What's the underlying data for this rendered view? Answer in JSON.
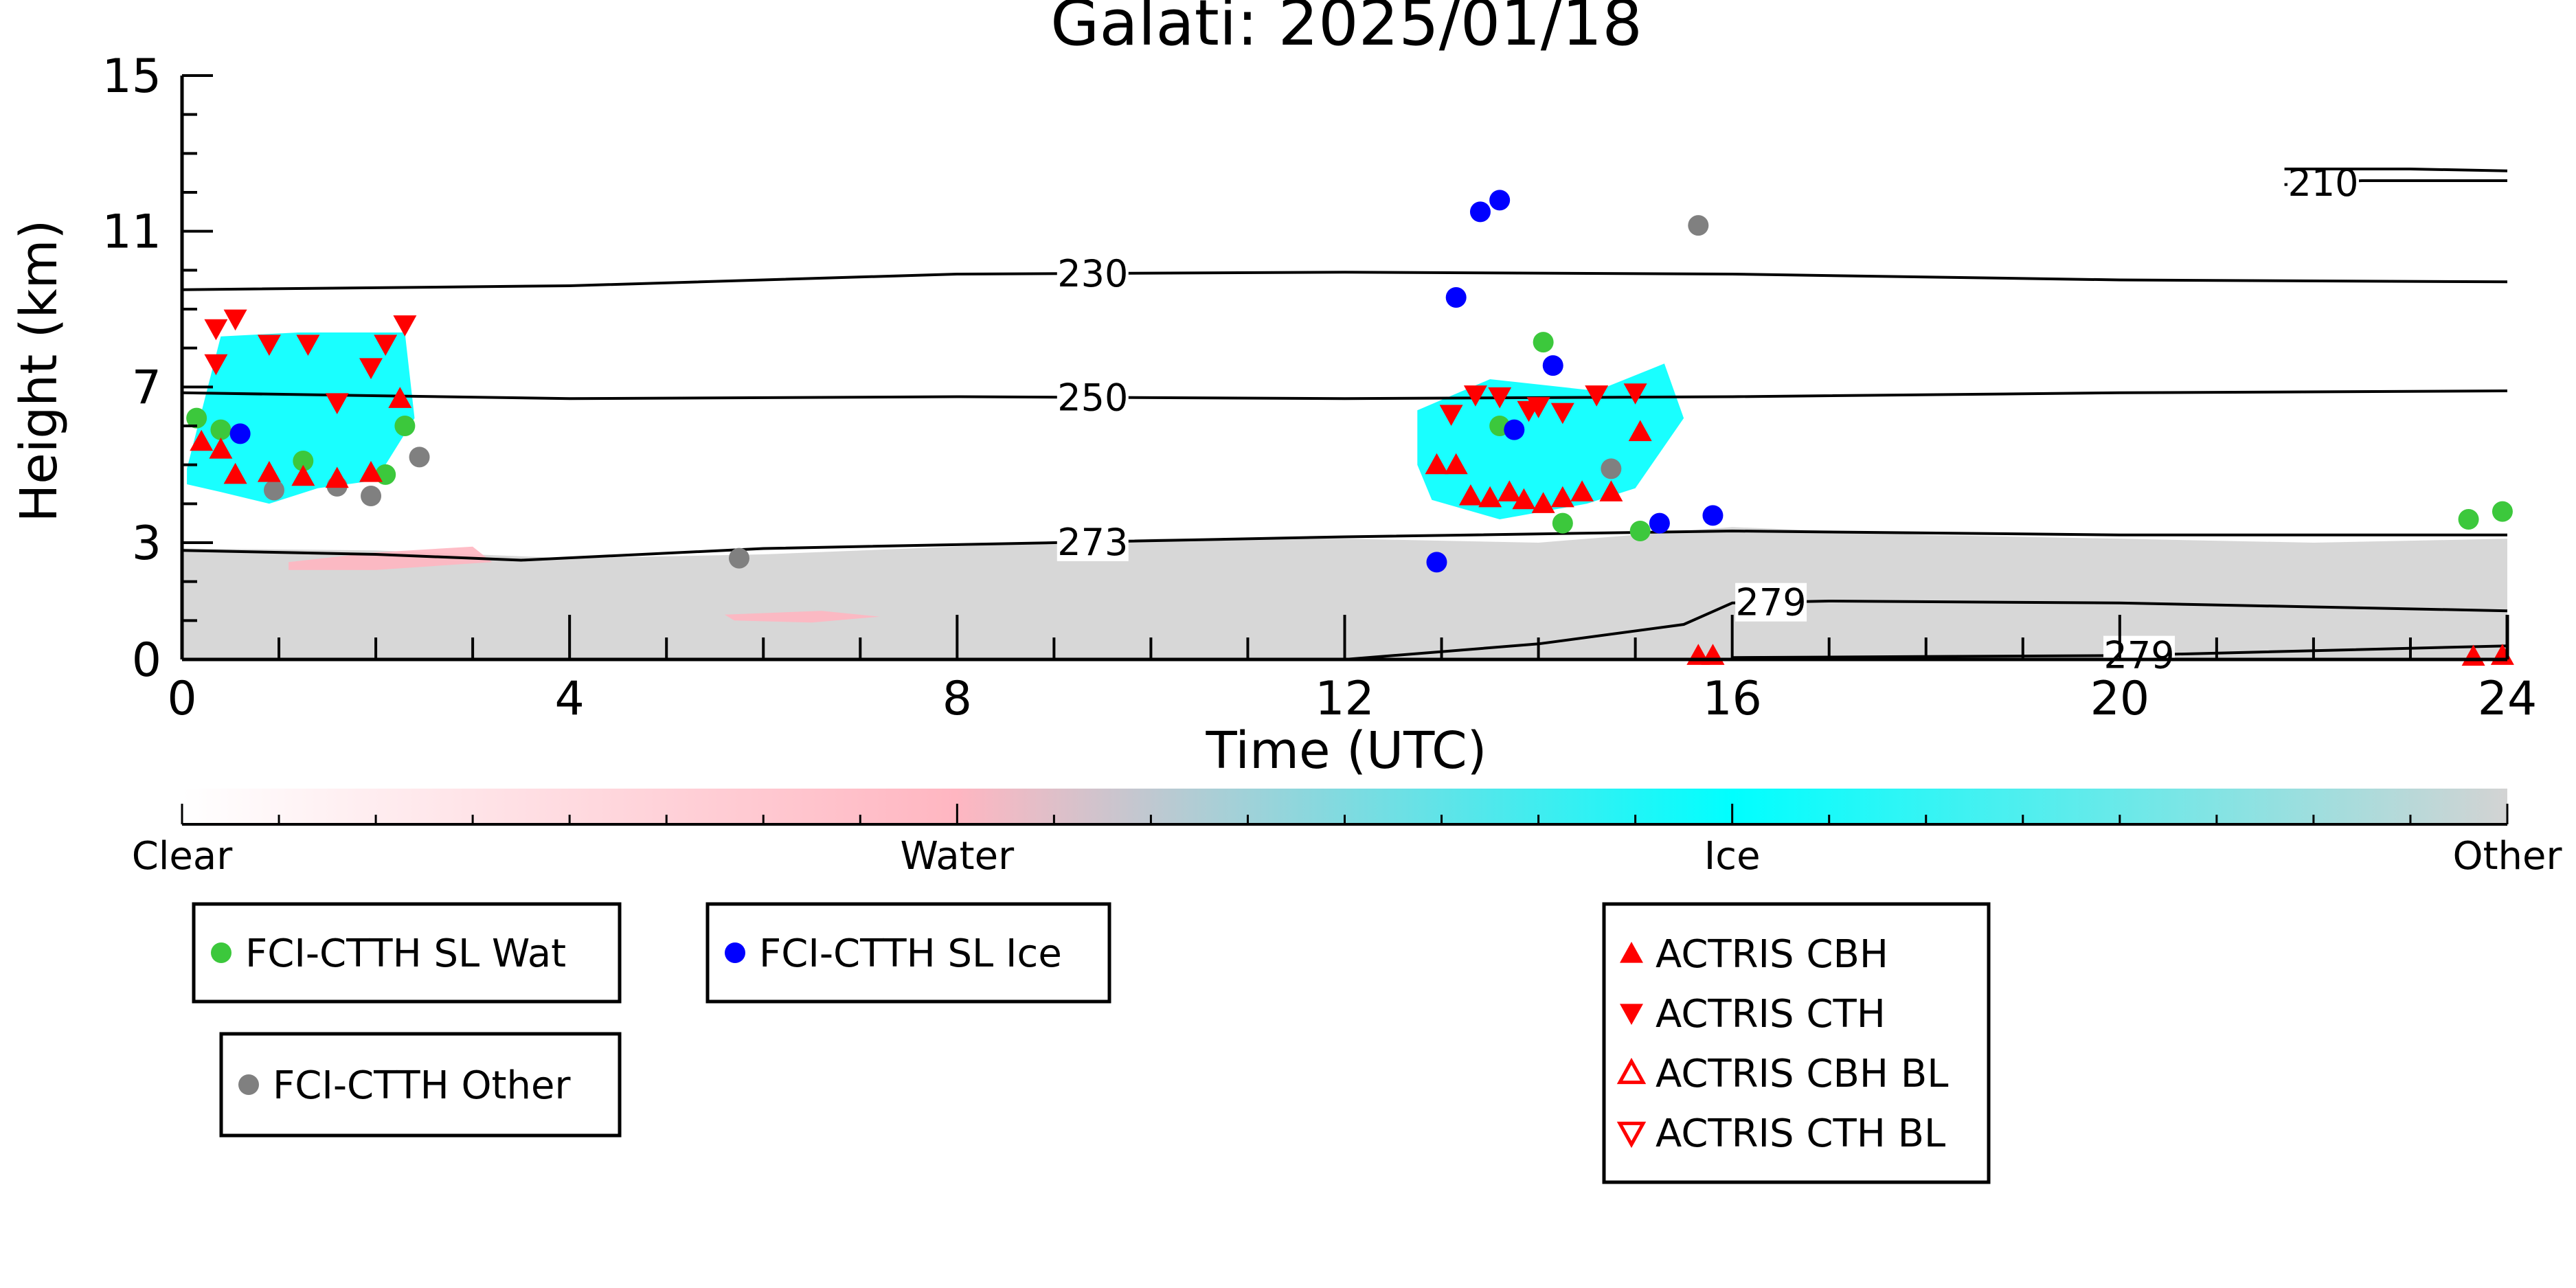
{
  "chart_data": {
    "type": "scatter",
    "title": "Galati: 2025/01/18",
    "xlabel": "Time (UTC)",
    "ylabel": "Height (km)",
    "xlim": [
      0,
      24
    ],
    "ylim": [
      0,
      15
    ],
    "xticks": [
      0,
      4,
      8,
      12,
      16,
      20,
      24
    ],
    "yticks": [
      0,
      3,
      7,
      11,
      15
    ],
    "grid": false,
    "colorbar": {
      "labels": [
        "Clear",
        "Water",
        "Ice",
        "Other"
      ],
      "colors": [
        "#ffffff",
        "#ffb6c1",
        "#00ffff",
        "#d3d3d3"
      ]
    },
    "cloud_regions": [
      {
        "class": "Other",
        "color": "#d3d3d3",
        "points": [
          [
            0,
            0
          ],
          [
            0,
            2.85
          ],
          [
            2,
            2.8
          ],
          [
            4,
            2.6
          ],
          [
            6,
            2.7
          ],
          [
            8,
            2.9
          ],
          [
            10,
            3.1
          ],
          [
            12,
            3.1
          ],
          [
            14,
            3.0
          ],
          [
            16,
            3.4
          ],
          [
            18,
            3.2
          ],
          [
            20,
            3.1
          ],
          [
            22,
            3.0
          ],
          [
            24,
            3.1
          ],
          [
            24,
            0
          ]
        ]
      },
      {
        "class": "Water",
        "color": "#ffb6c1",
        "points": [
          [
            1.1,
            2.5
          ],
          [
            2.0,
            2.75
          ],
          [
            3.0,
            2.9
          ],
          [
            3.2,
            2.5
          ],
          [
            2.0,
            2.3
          ],
          [
            1.1,
            2.3
          ]
        ]
      },
      {
        "class": "Water",
        "color": "#ffb6c1",
        "points": [
          [
            5.6,
            1.15
          ],
          [
            6.6,
            1.25
          ],
          [
            7.2,
            1.1
          ],
          [
            6.5,
            0.95
          ],
          [
            5.7,
            1.0
          ]
        ]
      },
      {
        "class": "Ice",
        "color": "#00ffff",
        "points": [
          [
            0.05,
            4.9
          ],
          [
            0.4,
            8.3
          ],
          [
            1.2,
            8.4
          ],
          [
            2.3,
            8.4
          ],
          [
            2.4,
            6.2
          ],
          [
            2.0,
            4.6
          ],
          [
            1.4,
            4.4
          ],
          [
            0.9,
            4.0
          ],
          [
            0.4,
            4.3
          ],
          [
            0.05,
            4.5
          ]
        ]
      },
      {
        "class": "Ice",
        "color": "#00ffff",
        "points": [
          [
            12.75,
            6.4
          ],
          [
            13.5,
            7.2
          ],
          [
            14.6,
            6.9
          ],
          [
            15.3,
            7.6
          ],
          [
            15.5,
            6.2
          ],
          [
            15.0,
            4.4
          ],
          [
            14.5,
            4.0
          ],
          [
            13.6,
            3.6
          ],
          [
            12.9,
            4.1
          ],
          [
            12.75,
            5.0
          ]
        ]
      }
    ],
    "isotherms": [
      {
        "label": "210",
        "label_x": 22.1,
        "points": [
          [
            21.7,
            12.2
          ],
          [
            22.5,
            12.3
          ],
          [
            24,
            12.3
          ]
        ]
      },
      {
        "label": "210",
        "label_x": null,
        "points": [
          [
            21.7,
            12.6
          ],
          [
            23,
            12.6
          ],
          [
            24,
            12.55
          ]
        ]
      },
      {
        "label": "230",
        "label_x": 9.4,
        "points": [
          [
            0,
            9.5
          ],
          [
            4,
            9.6
          ],
          [
            8,
            9.9
          ],
          [
            12,
            9.95
          ],
          [
            16,
            9.9
          ],
          [
            20,
            9.75
          ],
          [
            24,
            9.7
          ]
        ]
      },
      {
        "label": "250",
        "label_x": 9.4,
        "points": [
          [
            0,
            6.85
          ],
          [
            4,
            6.7
          ],
          [
            8,
            6.75
          ],
          [
            12,
            6.7
          ],
          [
            16,
            6.75
          ],
          [
            20,
            6.85
          ],
          [
            24,
            6.9
          ]
        ]
      },
      {
        "label": "273",
        "label_x": 9.4,
        "points": [
          [
            0,
            2.8
          ],
          [
            2,
            2.7
          ],
          [
            3.5,
            2.55
          ],
          [
            6,
            2.85
          ],
          [
            9,
            3.0
          ],
          [
            12,
            3.15
          ],
          [
            16,
            3.3
          ],
          [
            20,
            3.2
          ],
          [
            24,
            3.2
          ]
        ]
      },
      {
        "label": "279",
        "label_x": 16.4,
        "points": [
          [
            12,
            0.0
          ],
          [
            14,
            0.4
          ],
          [
            15.5,
            0.9
          ],
          [
            16,
            1.45
          ],
          [
            17,
            1.5
          ],
          [
            20,
            1.45
          ],
          [
            22,
            1.35
          ],
          [
            24,
            1.25
          ]
        ]
      },
      {
        "label": "279",
        "label_x": 20.2,
        "points": [
          [
            16,
            0.05
          ],
          [
            20,
            0.1
          ],
          [
            24,
            0.35
          ]
        ]
      }
    ],
    "series": [
      {
        "name": "FCI-CTTH SL Wat",
        "color": "#3cc83c",
        "marker": "circle",
        "points": [
          [
            0.15,
            6.2
          ],
          [
            0.4,
            5.9
          ],
          [
            1.25,
            5.1
          ],
          [
            2.1,
            4.75
          ],
          [
            2.3,
            6.0
          ],
          [
            14.05,
            8.15
          ],
          [
            13.6,
            6.0
          ],
          [
            14.25,
            3.5
          ],
          [
            15.05,
            3.3
          ],
          [
            23.6,
            3.6
          ],
          [
            23.95,
            3.8
          ]
        ]
      },
      {
        "name": "FCI-CTTH SL Ice",
        "color": "#0000ff",
        "marker": "circle",
        "points": [
          [
            0.6,
            5.8
          ],
          [
            13.4,
            11.5
          ],
          [
            13.6,
            11.8
          ],
          [
            13.15,
            9.3
          ],
          [
            14.15,
            7.55
          ],
          [
            13.75,
            5.9
          ],
          [
            12.95,
            2.5
          ],
          [
            15.25,
            3.5
          ],
          [
            15.8,
            3.7
          ]
        ]
      },
      {
        "name": "FCI-CTTH Other",
        "color": "#808080",
        "marker": "circle",
        "points": [
          [
            2.45,
            5.2
          ],
          [
            0.95,
            4.35
          ],
          [
            1.6,
            4.45
          ],
          [
            1.95,
            4.2
          ],
          [
            5.75,
            2.6
          ],
          [
            14.75,
            4.9
          ],
          [
            15.65,
            11.15
          ]
        ]
      },
      {
        "name": "ACTRIS CBH",
        "color": "#ff0000",
        "marker": "triangle-up",
        "points": [
          [
            0.2,
            5.6
          ],
          [
            0.4,
            5.4
          ],
          [
            0.55,
            4.75
          ],
          [
            0.9,
            4.8
          ],
          [
            1.25,
            4.7
          ],
          [
            1.6,
            4.65
          ],
          [
            1.95,
            4.8
          ],
          [
            2.25,
            6.7
          ],
          [
            12.95,
            5.0
          ],
          [
            13.15,
            5.0
          ],
          [
            13.3,
            4.2
          ],
          [
            13.5,
            4.15
          ],
          [
            13.7,
            4.3
          ],
          [
            13.85,
            4.1
          ],
          [
            14.05,
            4.0
          ],
          [
            14.25,
            4.15
          ],
          [
            14.45,
            4.3
          ],
          [
            14.75,
            4.3
          ],
          [
            15.05,
            5.85
          ],
          [
            15.65,
            0.1
          ],
          [
            15.8,
            0.1
          ],
          [
            23.65,
            0.08
          ],
          [
            23.95,
            0.1
          ]
        ]
      },
      {
        "name": "ACTRIS CTH",
        "color": "#ff0000",
        "marker": "triangle-down",
        "points": [
          [
            0.35,
            8.5
          ],
          [
            0.55,
            8.75
          ],
          [
            0.9,
            8.1
          ],
          [
            1.6,
            6.6
          ],
          [
            1.95,
            7.5
          ],
          [
            2.1,
            8.1
          ],
          [
            2.3,
            8.6
          ],
          [
            0.35,
            7.6
          ],
          [
            1.3,
            8.1
          ],
          [
            13.1,
            6.3
          ],
          [
            13.35,
            6.8
          ],
          [
            13.6,
            6.75
          ],
          [
            13.9,
            6.4
          ],
          [
            14.0,
            6.5
          ],
          [
            14.25,
            6.35
          ],
          [
            14.6,
            6.8
          ],
          [
            15.0,
            6.85
          ]
        ]
      },
      {
        "name": "ACTRIS CBH BL",
        "color": "#ff0000",
        "marker": "triangle-up-open",
        "points": []
      },
      {
        "name": "ACTRIS CTH BL",
        "color": "#ff0000",
        "marker": "triangle-down-open",
        "points": []
      }
    ]
  }
}
